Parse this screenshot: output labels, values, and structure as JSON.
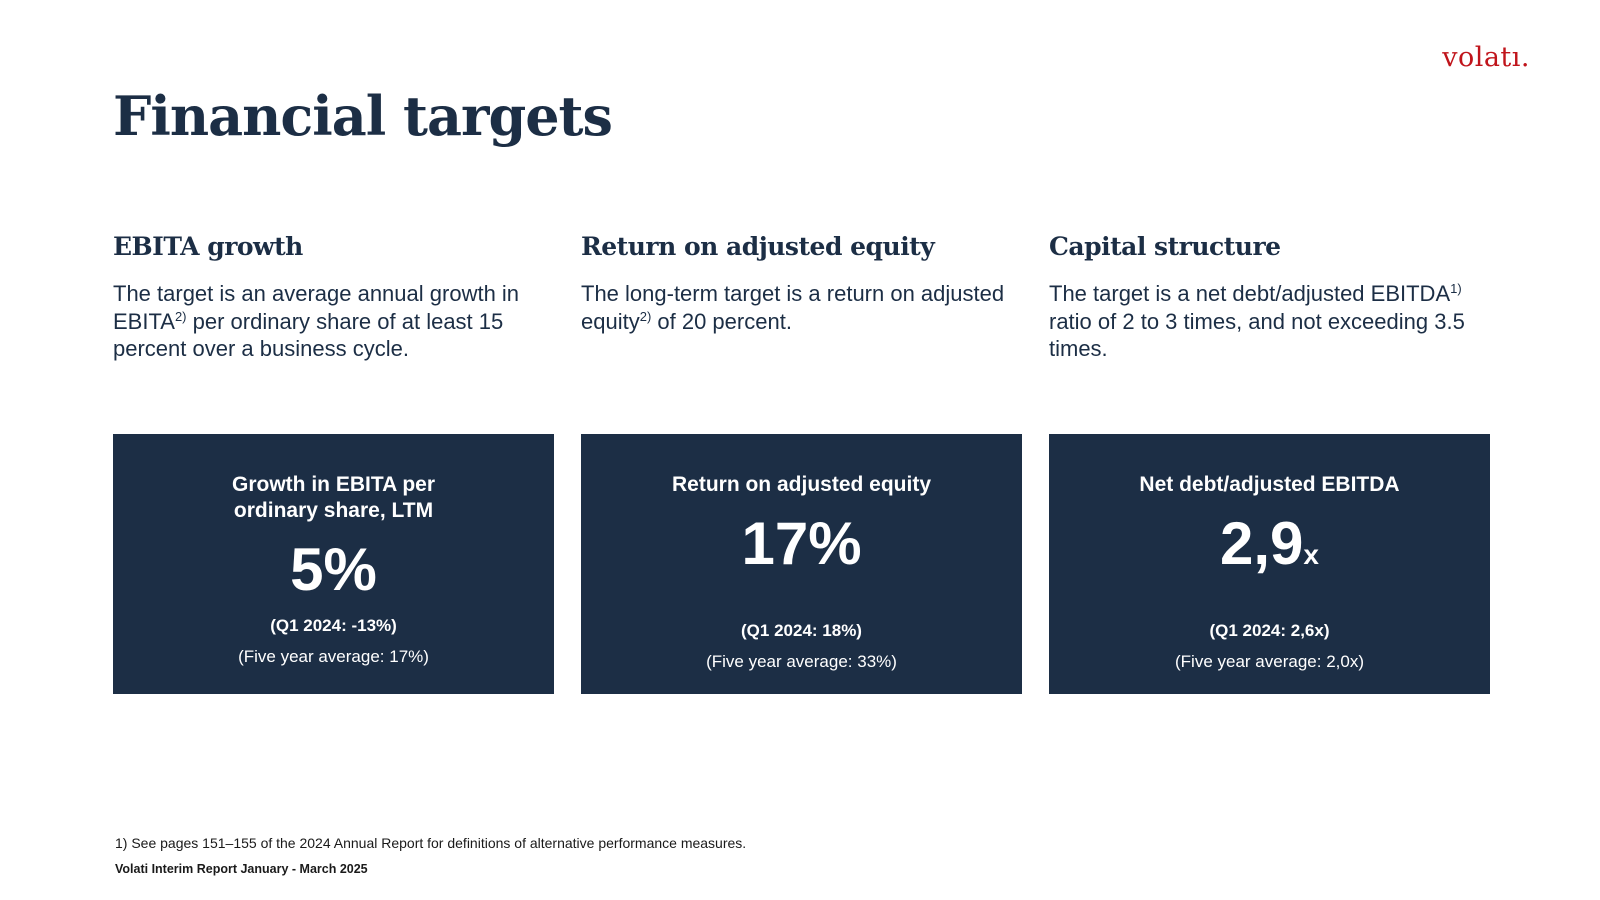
{
  "brand": {
    "logo_text": "volatı.",
    "logo_color": "#c0141b",
    "navy": "#1c2e45"
  },
  "page": {
    "title": "Financial targets"
  },
  "targets": [
    {
      "heading": "EBITA growth",
      "desc_part1": "The target is an average annual growth in EBITA",
      "desc_sup": "2)",
      "desc_part2": " per ordinary share of at least 15 percent over a business cycle.",
      "card_label": "Growth in EBITA per ordinary share, LTM",
      "card_value": "5%",
      "card_unit": "",
      "card_prev": "(Q1 2024: -13%)",
      "card_avg": "(Five year average: 17%)"
    },
    {
      "heading": "Return on adjusted equity",
      "desc_part1": "The long-term target is a return on adjusted equity",
      "desc_sup": "2)",
      "desc_part2": " of 20 percent.",
      "card_label": "Return on adjusted equity",
      "card_value": "17%",
      "card_unit": "",
      "card_prev": "(Q1 2024: 18%)",
      "card_avg": "(Five year average: 33%)"
    },
    {
      "heading": "Capital structure",
      "desc_part1": "The target is a net debt/adjusted EBITDA",
      "desc_sup": "1)",
      "desc_part2": " ratio of 2 to 3 times, and not exceeding 3.5 times.",
      "card_label": "Net debt/adjusted EBITDA",
      "card_value": "2,9",
      "card_unit": "x",
      "card_prev": "(Q1 2024: 2,6x)",
      "card_avg": "(Five year average: 2,0x)"
    }
  ],
  "footer": {
    "footnote": "1) See pages 151–155 of the 2024 Annual Report for definitions of alternative performance measures.",
    "report_name": "Volati Interim Report January - March 2025"
  }
}
